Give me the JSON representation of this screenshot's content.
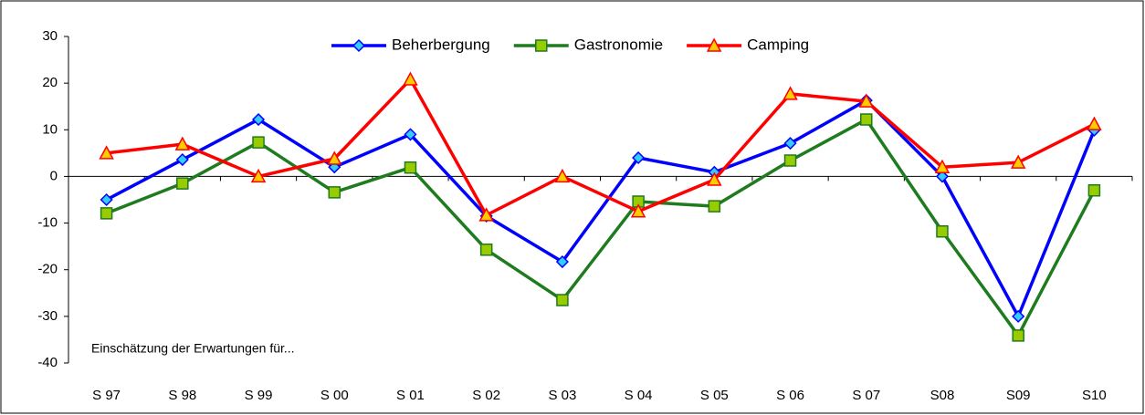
{
  "chart_data": {
    "type": "line",
    "annotation": "Einschätzung der Erwartungen für...",
    "categories": [
      "S 97",
      "S 98",
      "S 99",
      "S 00",
      "S 01",
      "S 02",
      "S 03",
      "S 04",
      "S 05",
      "S 06",
      "S 07",
      "S08",
      "S09",
      "S10"
    ],
    "series": [
      {
        "name": "Beherbergung",
        "color": "#0000ff",
        "marker": "diamond",
        "marker_color": "#33ccff",
        "values": [
          -5,
          3.6,
          12.2,
          2,
          9,
          -8.5,
          -18.3,
          4,
          0.9,
          7.1,
          16.3,
          0,
          -30,
          9.9
        ]
      },
      {
        "name": "Gastronomie",
        "color": "#1e7b1e",
        "marker": "square",
        "marker_color": "#99cc00",
        "values": [
          -7.9,
          -1.5,
          7.3,
          -3.4,
          1.9,
          -15.7,
          -26.5,
          -5.4,
          -6.4,
          3.4,
          12.2,
          -11.8,
          -34.1,
          -3
        ]
      },
      {
        "name": "Camping",
        "color": "#ff0000",
        "marker": "triangle",
        "marker_color": "#ffcc00",
        "values": [
          5,
          6.9,
          0,
          3.8,
          20.8,
          -8.3,
          0,
          -7.5,
          -0.7,
          17.7,
          16.1,
          2,
          3,
          11.2
        ]
      }
    ],
    "ylim": [
      -40,
      30
    ],
    "yticks": [
      -40,
      -30,
      -20,
      -10,
      0,
      10,
      20,
      30
    ],
    "legend": "top"
  }
}
